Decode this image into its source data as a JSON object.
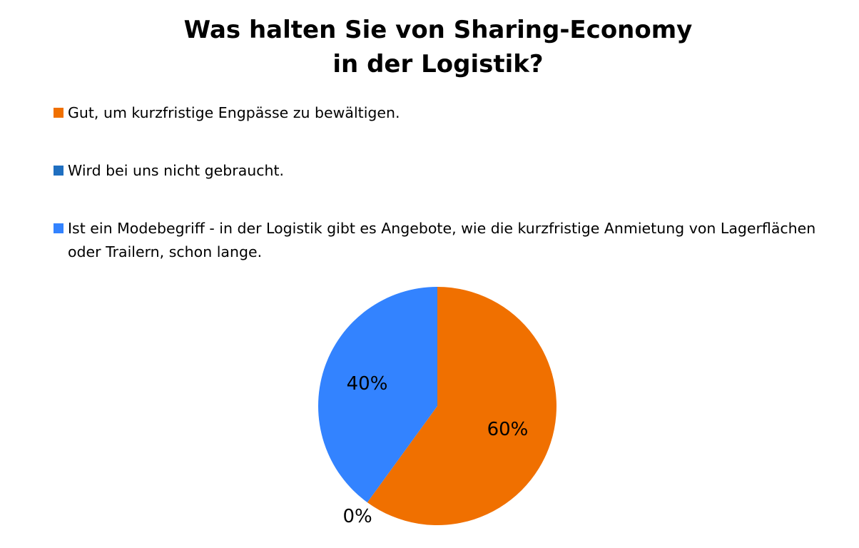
{
  "chart_data": {
    "type": "pie",
    "title": "Was halten Sie von Sharing-Economy in der Logistik?",
    "title_lines": [
      "Was halten Sie von Sharing-Economy",
      "in der Logistik?"
    ],
    "legend_position": "top",
    "categories": [
      "Gut, um kurzfristige Engpässe zu bewältigen.",
      "Wird bei uns nicht gebraucht.",
      "Ist ein Modebegriff - in der Logistik gibt es Angebote, wie die kurzfristige Anmietung von Lagerflächen oder Trailern, schon lange."
    ],
    "values": [
      60,
      0,
      40
    ],
    "data_labels": [
      "60%",
      "0%",
      "40%"
    ],
    "colors": [
      "#f07000",
      "#1f6fc0",
      "#3383ff"
    ]
  }
}
